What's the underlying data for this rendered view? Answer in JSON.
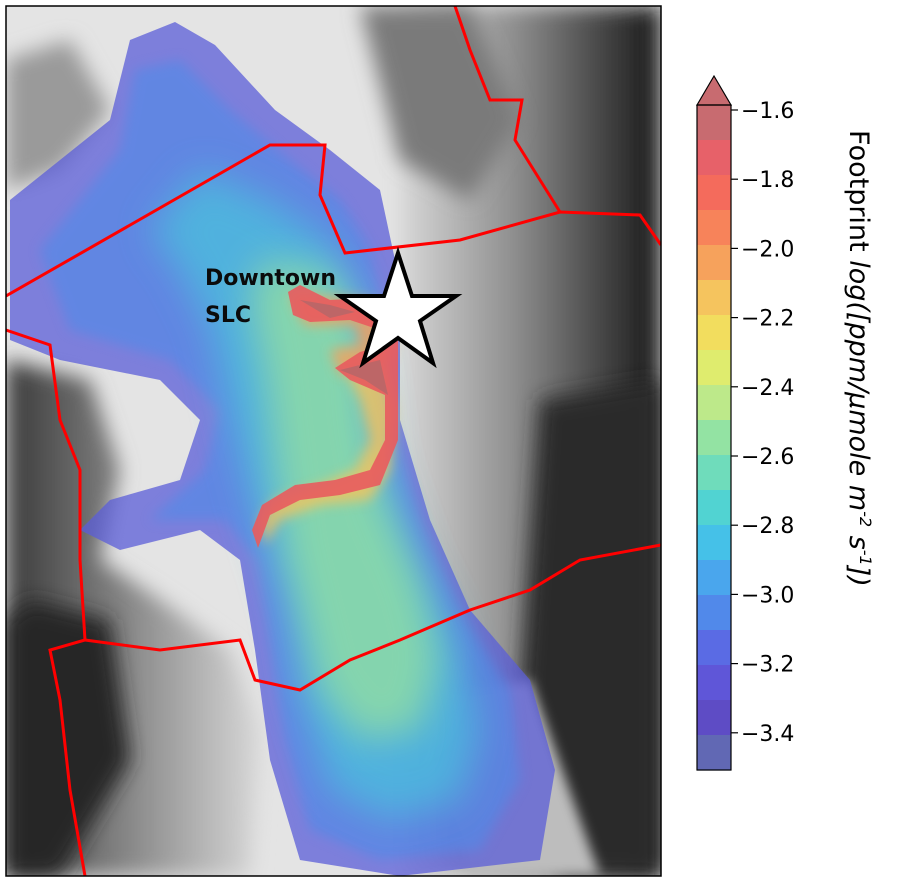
{
  "map": {
    "place_label_line1": "Downtown",
    "place_label_line2": "SLC",
    "marker_icon": "star-icon",
    "boundary_color": "#ff0000"
  },
  "colorbar": {
    "title_prefix": "Footprint ",
    "title_italic": "log([ppm/",
    "title_mu": "μ",
    "title_mole": "mole m",
    "title_exp1": "-2",
    "title_s": " s",
    "title_exp2": "-1",
    "title_end": "])",
    "ticks": [
      "−1.6",
      "−1.8",
      "−2.0",
      "−2.2",
      "−2.4",
      "−2.6",
      "−2.8",
      "−3.0",
      "−3.2",
      "−3.4"
    ],
    "colors": [
      "#c86b70",
      "#e76169",
      "#f46b5c",
      "#f7835a",
      "#f6a25c",
      "#f5c45e",
      "#f2dd5e",
      "#dfec6e",
      "#bde98a",
      "#93e3a3",
      "#6fdcbb",
      "#51d3d2",
      "#45c1e8",
      "#4aa6ed",
      "#5189ea",
      "#5a6be4",
      "#5f56d8",
      "#5e4cc5",
      "#6168b4"
    ]
  }
}
